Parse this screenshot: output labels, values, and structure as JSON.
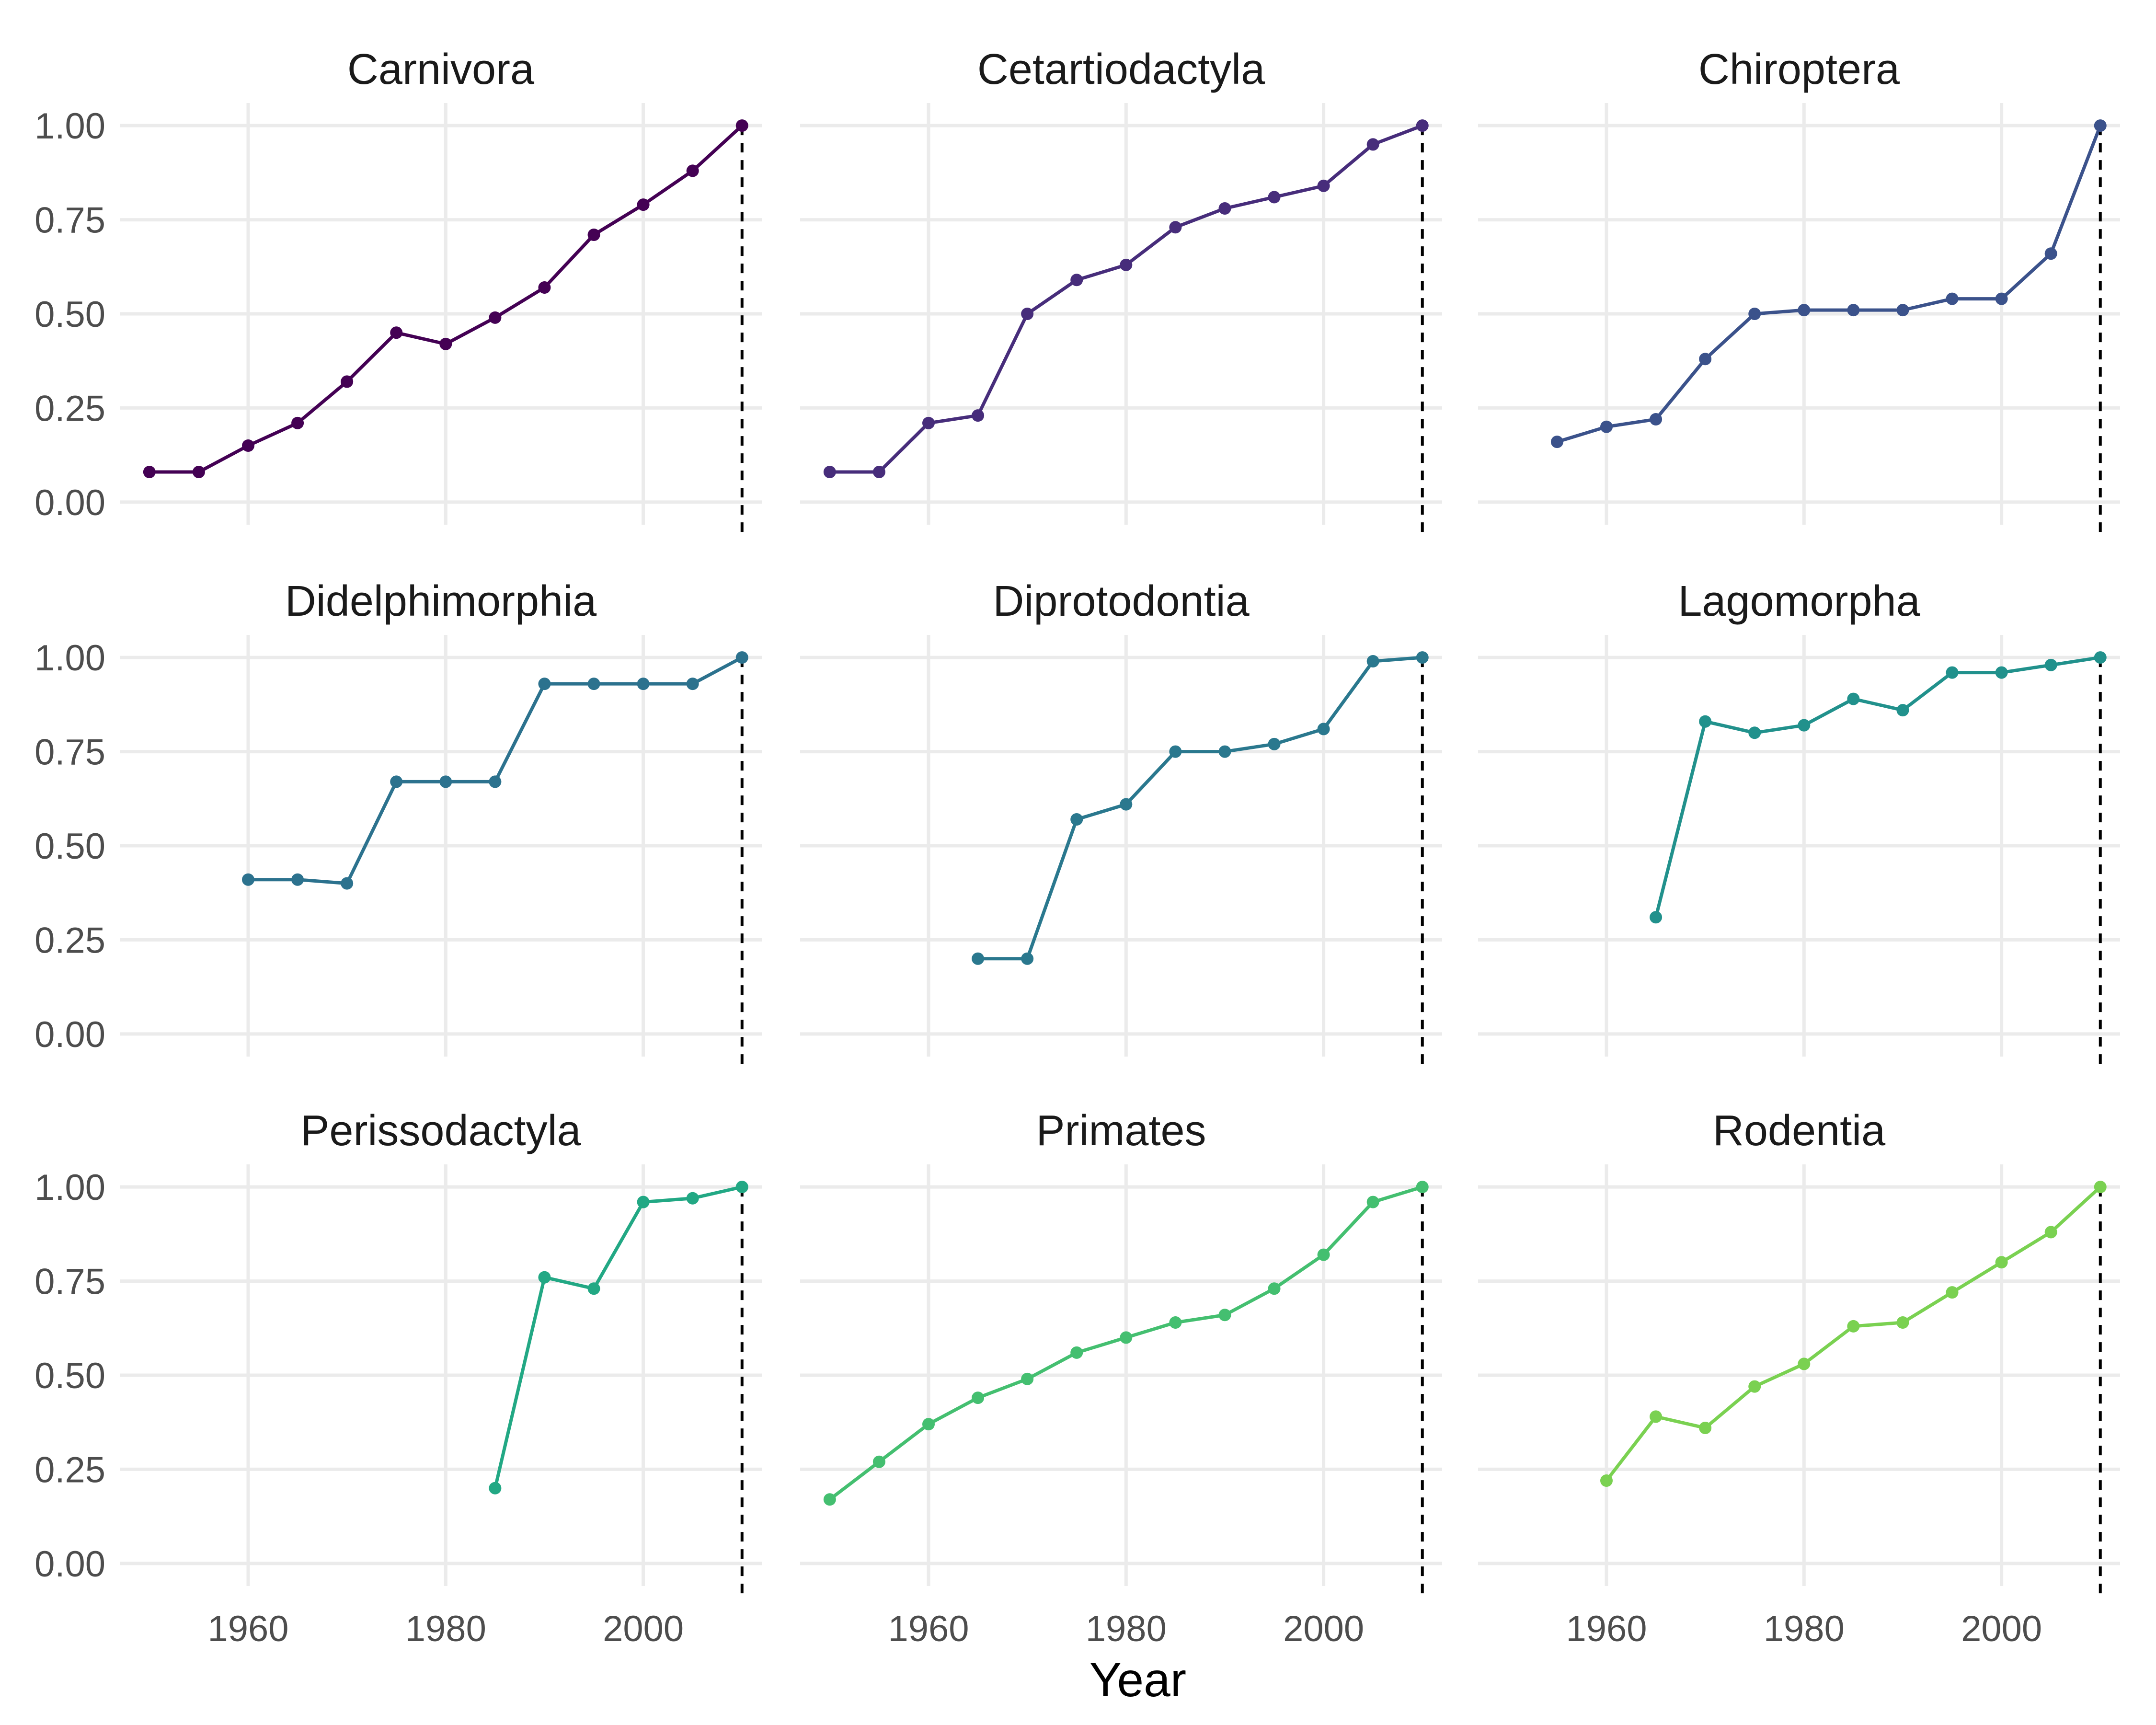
{
  "chart_data": {
    "type": "line",
    "xlabel": "Year",
    "ylabel": "",
    "xlim": [
      1947,
      2012
    ],
    "ylim": [
      -0.06,
      1.06
    ],
    "x_ticks": [
      1960,
      1980,
      2000
    ],
    "x_tick_labels": [
      "1960",
      "1980",
      "2000"
    ],
    "y_ticks": [
      0,
      0.25,
      0.5,
      0.75,
      1.0
    ],
    "y_tick_labels": [
      "0.00",
      "0.25",
      "0.50",
      "0.75",
      "1.00"
    ],
    "reference_line": {
      "x": 2010,
      "style": "dashed",
      "color": "#000000"
    },
    "grid": true,
    "legend": "none",
    "facets": [
      {
        "title": "Carnivora",
        "color": "#440154",
        "x": [
          1950,
          1955,
          1960,
          1965,
          1970,
          1975,
          1980,
          1985,
          1990,
          1995,
          2000,
          2005,
          2010
        ],
        "y": [
          0.08,
          0.08,
          0.15,
          0.21,
          0.32,
          0.45,
          0.42,
          0.49,
          0.57,
          0.71,
          0.79,
          0.88,
          1.0
        ]
      },
      {
        "title": "Cetartiodactyla",
        "color": "#472d7b",
        "x": [
          1950,
          1955,
          1960,
          1965,
          1970,
          1975,
          1980,
          1985,
          1990,
          1995,
          2000,
          2005,
          2010
        ],
        "y": [
          0.08,
          0.08,
          0.21,
          0.23,
          0.5,
          0.59,
          0.63,
          0.73,
          0.78,
          0.81,
          0.84,
          0.95,
          1.0
        ]
      },
      {
        "title": "Chiroptera",
        "color": "#3b528b",
        "x": [
          1955,
          1960,
          1965,
          1970,
          1975,
          1980,
          1985,
          1990,
          1995,
          2000,
          2005,
          2010
        ],
        "y": [
          0.16,
          0.2,
          0.22,
          0.38,
          0.5,
          0.51,
          0.51,
          0.51,
          0.54,
          0.54,
          0.66,
          1.0
        ]
      },
      {
        "title": "Didelphimorphia",
        "color": "#2c728e",
        "x": [
          1960,
          1965,
          1970,
          1975,
          1980,
          1985,
          1990,
          1995,
          2000,
          2005,
          2010
        ],
        "y": [
          0.41,
          0.41,
          0.4,
          0.67,
          0.67,
          0.67,
          0.93,
          0.93,
          0.93,
          0.93,
          1.0
        ]
      },
      {
        "title": "Diprotodontia",
        "color": "#2a788e",
        "x": [
          1965,
          1970,
          1975,
          1980,
          1985,
          1990,
          1995,
          2000,
          2005,
          2010
        ],
        "y": [
          0.2,
          0.2,
          0.57,
          0.61,
          0.75,
          0.75,
          0.77,
          0.81,
          0.99,
          1.0
        ]
      },
      {
        "title": "Lagomorpha",
        "color": "#21918c",
        "x": [
          1965,
          1970,
          1975,
          1980,
          1985,
          1990,
          1995,
          2000,
          2005,
          2010
        ],
        "y": [
          0.31,
          0.83,
          0.8,
          0.82,
          0.89,
          0.86,
          0.96,
          0.96,
          0.98,
          1.0
        ]
      },
      {
        "title": "Perissodactyla",
        "color": "#22a884",
        "x": [
          1985,
          1990,
          1995,
          2000,
          2005,
          2010
        ],
        "y": [
          0.2,
          0.76,
          0.73,
          0.96,
          0.97,
          1.0
        ]
      },
      {
        "title": "Primates",
        "color": "#44bf70",
        "x": [
          1950,
          1955,
          1960,
          1965,
          1970,
          1975,
          1980,
          1985,
          1990,
          1995,
          2000,
          2005,
          2010
        ],
        "y": [
          0.17,
          0.27,
          0.37,
          0.44,
          0.49,
          0.56,
          0.6,
          0.64,
          0.66,
          0.73,
          0.82,
          0.96,
          1.0
        ]
      },
      {
        "title": "Rodentia",
        "color": "#7ad151",
        "x": [
          1960,
          1965,
          1970,
          1975,
          1980,
          1985,
          1990,
          1995,
          2000,
          2005,
          2010
        ],
        "y": [
          0.22,
          0.39,
          0.36,
          0.47,
          0.53,
          0.63,
          0.64,
          0.72,
          0.8,
          0.88,
          1.0
        ]
      }
    ]
  }
}
